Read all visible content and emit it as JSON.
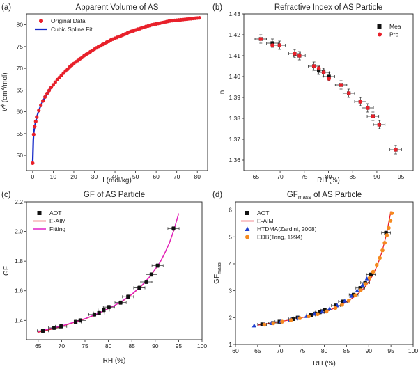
{
  "chart_data": [
    {
      "panel": "(a)",
      "type": "line",
      "title": "Apparent Volume of AS",
      "xlabel": "I (mol/kg)",
      "ylabel": "V",
      "ylabel_sup": "ϕ",
      "ylabel_unit_pre": " (cm",
      "ylabel_unit_sup": "3",
      "ylabel_unit_post": "/mol)",
      "xlim": [
        -3,
        85
      ],
      "ylim": [
        46.5,
        82.5
      ],
      "xticks": [
        0,
        10,
        20,
        30,
        40,
        50,
        60,
        70,
        80
      ],
      "yticks": [
        50,
        55,
        60,
        65,
        70,
        75,
        80
      ],
      "legend": "top-left",
      "series": [
        {
          "name": "Original Data",
          "kind": "points",
          "color": "#e8202a",
          "x": [
            0,
            0.5,
            1,
            1.5,
            2,
            3,
            4,
            5,
            6,
            7,
            8,
            9,
            10,
            11,
            12,
            13,
            14,
            15,
            16,
            17,
            18,
            19,
            20,
            21,
            22,
            23,
            24,
            25,
            26,
            27,
            28,
            29,
            30,
            31,
            32,
            33,
            34,
            35,
            36,
            37,
            38,
            39,
            40,
            41,
            42,
            43,
            44,
            45,
            46,
            47,
            48,
            49,
            50,
            51,
            52,
            53,
            54,
            55,
            56,
            57,
            58,
            59,
            60,
            61,
            62,
            63,
            64,
            65,
            66,
            67,
            68,
            69,
            70,
            71,
            72,
            73,
            74,
            75,
            76,
            77,
            78,
            79,
            80,
            81
          ],
          "y": [
            48.2,
            54.8,
            56.6,
            57.8,
            58.8,
            60.3,
            61.5,
            62.5,
            63.4,
            64.2,
            64.9,
            65.6,
            66.2,
            66.8,
            67.4,
            67.9,
            68.4,
            68.9,
            69.4,
            69.8,
            70.3,
            70.7,
            71.1,
            71.5,
            71.8,
            72.2,
            72.5,
            72.9,
            73.2,
            73.5,
            73.8,
            74.1,
            74.4,
            74.7,
            75.0,
            75.2,
            75.5,
            75.7,
            76.0,
            76.2,
            76.5,
            76.7,
            76.9,
            77.1,
            77.3,
            77.5,
            77.7,
            77.9,
            78.1,
            78.3,
            78.5,
            78.6,
            78.8,
            79.0,
            79.1,
            79.3,
            79.4,
            79.6,
            79.7,
            79.8,
            80.0,
            80.1,
            80.2,
            80.3,
            80.4,
            80.5,
            80.6,
            80.7,
            80.8,
            80.9,
            80.95,
            81.0,
            81.05,
            81.1,
            81.15,
            81.2,
            81.25,
            81.3,
            81.35,
            81.4,
            81.45,
            81.5,
            81.55,
            81.6
          ]
        },
        {
          "name": "Cubic Spline Fit",
          "kind": "line",
          "color": "#1428c8",
          "x": [
            0,
            0.3,
            0.6,
            1,
            1.5,
            2,
            3,
            4,
            5,
            6,
            8,
            10,
            12,
            15,
            18,
            21,
            25,
            30,
            35,
            40,
            45,
            50,
            55,
            60,
            65,
            70,
            75,
            81
          ],
          "y": [
            48.2,
            53.5,
            55.5,
            56.6,
            57.8,
            58.8,
            60.3,
            61.5,
            62.5,
            63.4,
            64.9,
            66.2,
            67.4,
            68.9,
            70.3,
            71.5,
            72.9,
            74.4,
            75.7,
            76.9,
            77.9,
            78.8,
            79.6,
            80.2,
            80.7,
            81.05,
            81.3,
            81.6
          ]
        }
      ]
    },
    {
      "panel": "(b)",
      "type": "scatter",
      "title": "Refractive Index of AS Particle",
      "xlabel": "RH (%)",
      "ylabel": "n",
      "xlim": [
        62.5,
        97.5
      ],
      "ylim": [
        1.355,
        1.43
      ],
      "xticks": [
        65,
        70,
        75,
        80,
        85,
        90,
        95
      ],
      "yticks": [
        1.36,
        1.37,
        1.38,
        1.39,
        1.4,
        1.41,
        1.42,
        1.43
      ],
      "ytick_labels": [
        "1.36",
        "1.37",
        "1.38",
        "1.39",
        "1.40",
        "1.41",
        "1.42",
        "1.43"
      ],
      "legend": "top-right",
      "series": [
        {
          "name": "Mea",
          "kind": "square",
          "color": "#111111",
          "x": [
            66.0,
            68.4,
            69.9,
            73.0,
            74.0,
            77.0,
            78.0,
            79.0,
            80.1,
            82.6,
            84.2,
            86.6,
            88.1,
            89.2,
            90.5,
            93.9
          ],
          "y": [
            1.418,
            1.416,
            1.415,
            1.411,
            1.41,
            1.405,
            1.403,
            1.402,
            1.4,
            1.396,
            1.392,
            1.388,
            1.385,
            1.381,
            1.377,
            1.365
          ],
          "xerr": 1.2,
          "yerr": 0.002
        },
        {
          "name": "Pre",
          "kind": "circle",
          "color": "#e8202a",
          "x": [
            66.0,
            68.4,
            69.9,
            73.0,
            74.0,
            77.0,
            78.0,
            79.0,
            80.1,
            82.6,
            84.2,
            86.6,
            88.1,
            89.2,
            90.5,
            93.9
          ],
          "y": [
            1.418,
            1.415,
            1.415,
            1.411,
            1.41,
            1.405,
            1.404,
            1.402,
            1.399,
            1.396,
            1.392,
            1.388,
            1.385,
            1.381,
            1.377,
            1.365
          ]
        }
      ]
    },
    {
      "panel": "(c)",
      "type": "line",
      "title": "GF of AS Particle",
      "xlabel": "RH (%)",
      "ylabel": "GF",
      "xlim": [
        62.5,
        100
      ],
      "ylim": [
        1.27,
        2.2
      ],
      "xticks": [
        65,
        70,
        75,
        80,
        85,
        90,
        95,
        100
      ],
      "yticks": [
        1.4,
        1.6,
        1.8,
        2.0,
        2.2
      ],
      "ytick_labels": [
        "1.4",
        "1.6",
        "1.8",
        "2.0",
        "2.2"
      ],
      "legend": "top-left",
      "series": [
        {
          "name": "AOT",
          "kind": "square",
          "color": "#111111",
          "x": [
            66.0,
            68.4,
            69.9,
            73.0,
            74.0,
            77.0,
            78.0,
            79.0,
            80.1,
            82.6,
            84.2,
            86.6,
            88.1,
            89.2,
            90.5,
            93.9
          ],
          "y": [
            1.33,
            1.35,
            1.36,
            1.39,
            1.4,
            1.44,
            1.45,
            1.47,
            1.49,
            1.52,
            1.56,
            1.62,
            1.66,
            1.71,
            1.77,
            2.02
          ],
          "xerr": 1.2,
          "yerr": 0.012
        },
        {
          "name": "E-AIM",
          "kind": "line",
          "color": "#e8202a",
          "x": [
            65,
            67,
            69,
            71,
            73,
            75,
            77,
            79,
            81,
            83,
            85,
            87,
            89,
            91,
            92,
            93,
            94,
            95
          ],
          "y": [
            1.32,
            1.335,
            1.35,
            1.37,
            1.39,
            1.41,
            1.435,
            1.465,
            1.495,
            1.53,
            1.575,
            1.63,
            1.7,
            1.79,
            1.85,
            1.92,
            2.01,
            2.12
          ]
        },
        {
          "name": "Fitting",
          "kind": "line",
          "color": "#e020c8",
          "x": [
            65,
            67,
            69,
            71,
            73,
            75,
            77,
            79,
            81,
            83,
            85,
            87,
            89,
            91,
            92,
            93,
            94,
            95
          ],
          "y": [
            1.325,
            1.34,
            1.355,
            1.372,
            1.392,
            1.412,
            1.437,
            1.465,
            1.496,
            1.532,
            1.577,
            1.632,
            1.702,
            1.792,
            1.852,
            1.922,
            2.012,
            2.122
          ]
        }
      ]
    },
    {
      "panel": "(d)",
      "type": "scatter",
      "title": "GF",
      "title_sub": "mass",
      "title_rest": " of AS Particle",
      "xlabel": "RH (%)",
      "ylabel": "GF",
      "ylabel_sub": "mass",
      "xlim": [
        60,
        100
      ],
      "ylim": [
        1,
        6.3
      ],
      "xticks": [
        60,
        65,
        70,
        75,
        80,
        85,
        90,
        95,
        100
      ],
      "yticks": [
        1,
        2,
        3,
        4,
        5,
        6
      ],
      "legend": "top-left",
      "series": [
        {
          "name": "AOT",
          "kind": "square",
          "color": "#111111",
          "x": [
            66.0,
            68.4,
            69.9,
            73.0,
            74.0,
            77.0,
            78.0,
            79.0,
            80.1,
            82.6,
            84.2,
            86.6,
            88.1,
            89.2,
            90.5,
            93.9
          ],
          "y": [
            1.75,
            1.8,
            1.85,
            1.95,
            2.0,
            2.1,
            2.15,
            2.2,
            2.3,
            2.45,
            2.6,
            2.85,
            3.1,
            3.3,
            3.6,
            5.15
          ],
          "xerr": 1.0,
          "yerr": 0.06
        },
        {
          "name": "E-AIM",
          "kind": "line",
          "color": "#e8202a",
          "x": [
            65,
            68,
            71,
            74,
            77,
            80,
            83,
            85,
            87,
            89,
            90,
            91,
            92,
            93,
            94,
            95
          ],
          "y": [
            1.72,
            1.8,
            1.88,
            1.97,
            2.07,
            2.2,
            2.4,
            2.58,
            2.8,
            3.1,
            3.33,
            3.6,
            3.97,
            4.45,
            5.1,
            5.95
          ]
        },
        {
          "name": "HTDMA(Zardini, 2008)",
          "kind": "triangle",
          "color": "#1f3fd0",
          "x": [
            64.2,
            66.5,
            68.1,
            70.2,
            72.3,
            74.1,
            76.0,
            77.8,
            79.5,
            81.2,
            82.9,
            84.6,
            86.1,
            87.4,
            88.6,
            89.6
          ],
          "y": [
            1.7,
            1.75,
            1.79,
            1.86,
            1.92,
            1.98,
            2.05,
            2.14,
            2.22,
            2.33,
            2.45,
            2.62,
            2.8,
            3.0,
            3.2,
            3.45
          ]
        },
        {
          "name": "EDB(Tang, 1994)",
          "kind": "circle",
          "color": "#f58a1f",
          "x": [
            66.5,
            68.5,
            70.5,
            72.5,
            74.5,
            76.5,
            78.5,
            80.5,
            82.5,
            84.0,
            85.5,
            87.0,
            88.2,
            89.3,
            90.2,
            91.0,
            91.8,
            92.5,
            93.1,
            93.6,
            94.1,
            94.5,
            94.9,
            95.2
          ],
          "y": [
            1.74,
            1.79,
            1.85,
            1.91,
            1.98,
            2.05,
            2.13,
            2.23,
            2.36,
            2.48,
            2.63,
            2.83,
            3.02,
            3.25,
            3.47,
            3.7,
            3.96,
            4.22,
            4.5,
            4.78,
            5.06,
            5.33,
            5.6,
            5.88
          ]
        }
      ]
    }
  ]
}
